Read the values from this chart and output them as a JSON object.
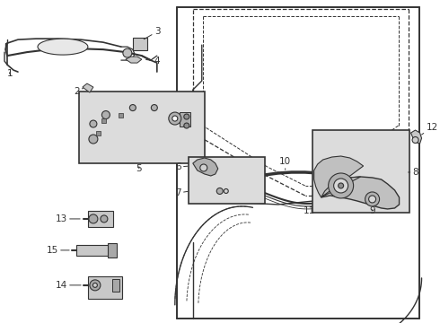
{
  "bg_color": "#ffffff",
  "line_color": "#333333",
  "box_fill": "#dcdcdc",
  "fig_w": 4.9,
  "fig_h": 3.6,
  "dpi": 100
}
